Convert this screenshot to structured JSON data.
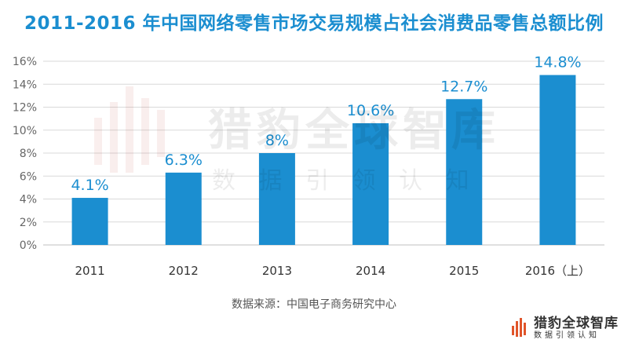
{
  "chart_data": {
    "type": "bar",
    "title": "2011-2016 年中国网络零售市场交易规模占社会消费品零售总额比例",
    "categories": [
      "2011",
      "2012",
      "2013",
      "2014",
      "2015",
      "2016（上）"
    ],
    "values": [
      4.1,
      6.3,
      8,
      10.6,
      12.7,
      14.8
    ],
    "data_labels": [
      "4.1%",
      "6.3%",
      "8%",
      "10.6%",
      "12.7%",
      "14.8%"
    ],
    "yticks": [
      "0%",
      "2%",
      "4%",
      "6%",
      "8%",
      "10%",
      "12%",
      "14%",
      "16%"
    ],
    "ylim": [
      0,
      16
    ],
    "grid": true,
    "bar_color": "#1b8ed0",
    "label_color": "#1b8ed0",
    "xlabel": "",
    "ylabel": ""
  },
  "source": "数据来源：中国电子商务研究中心",
  "watermark": {
    "name": "猎豹全球智库",
    "tagline": "数 据 引 领 认 知"
  },
  "logo": {
    "name": "猎豹全球智库",
    "tagline": "数据引领认知"
  }
}
